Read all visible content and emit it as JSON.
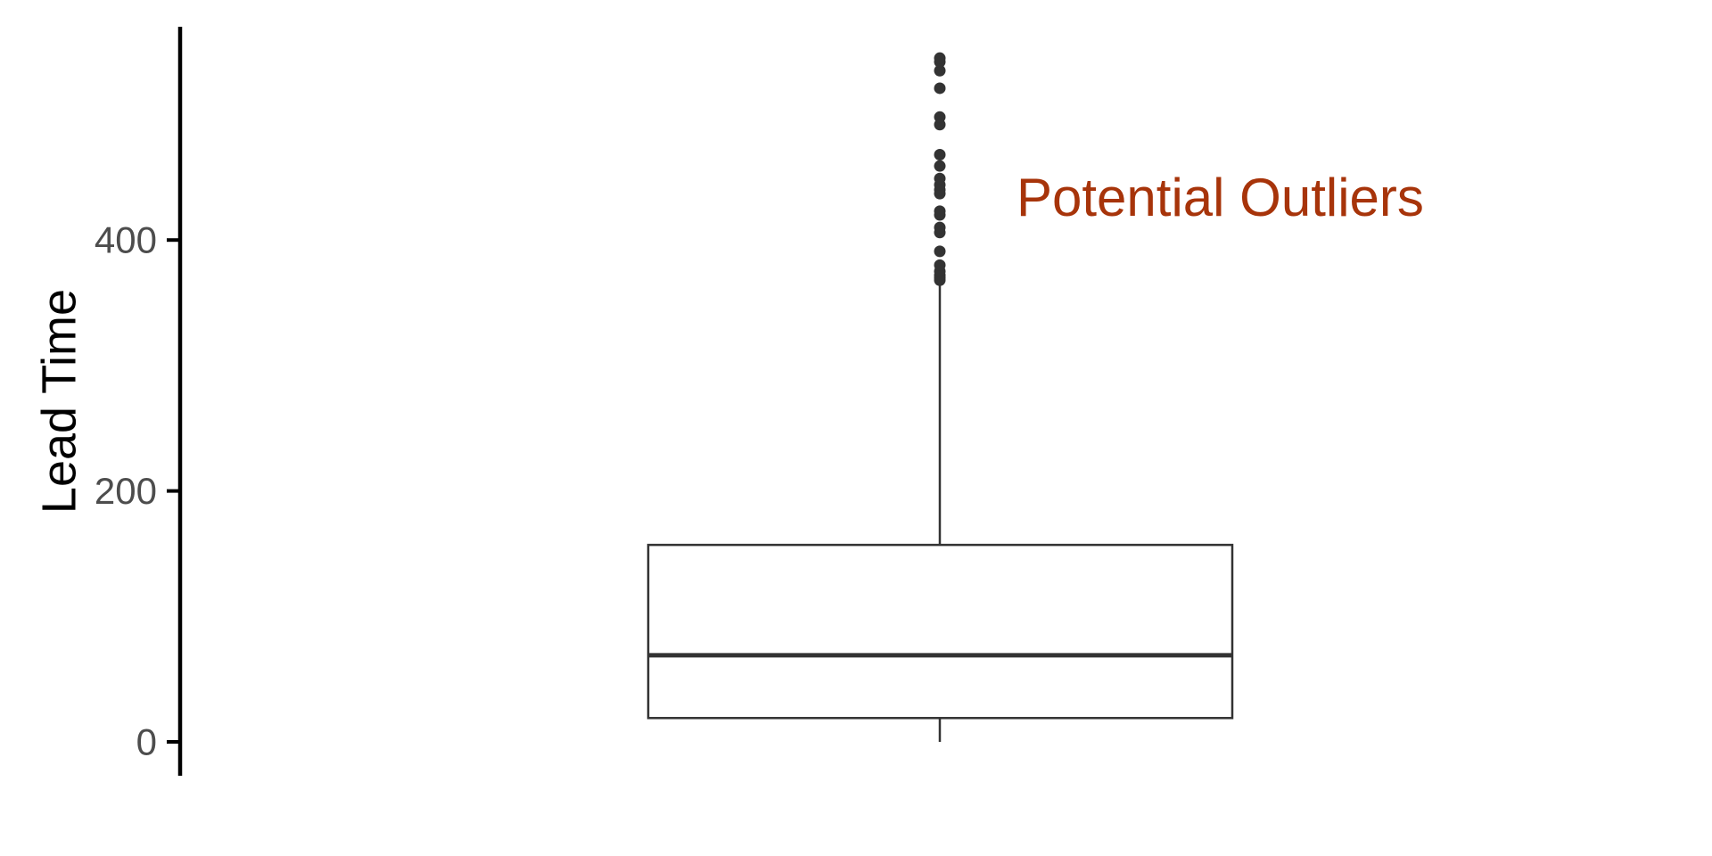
{
  "chart_data": {
    "type": "box",
    "title": "",
    "xlabel": "",
    "ylabel": "Lead Time",
    "ylim": [
      -27,
      570
    ],
    "yticks": [
      0,
      200,
      400
    ],
    "grid": false,
    "legend": "none",
    "box": {
      "min": 0,
      "q1": 19,
      "median": 69,
      "q3": 157,
      "whisker_high": 366,
      "outliers": [
        368,
        370,
        372,
        375,
        380,
        391,
        406,
        410,
        420,
        423,
        437,
        440,
        444,
        449,
        459,
        468,
        492,
        498,
        521,
        535,
        542,
        545
      ]
    },
    "annotation": {
      "text": "Potential Outliers",
      "color": "#a7340a"
    },
    "colors": {
      "box_stroke": "#333333",
      "box_fill": "#ffffff",
      "axis": "#000000",
      "tick_label": "#4d4d4d"
    }
  }
}
